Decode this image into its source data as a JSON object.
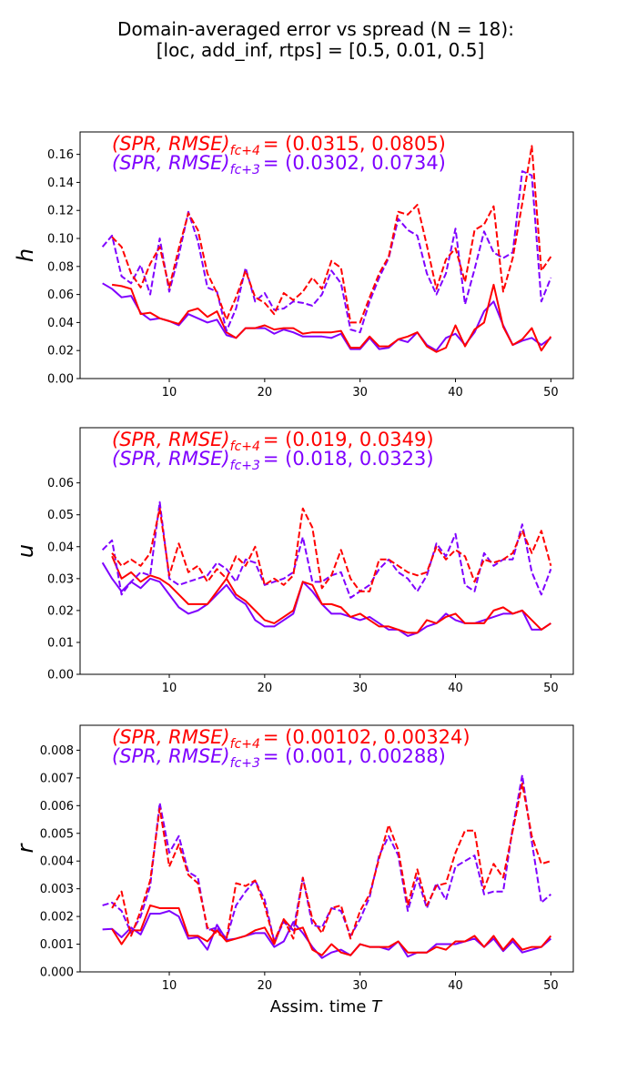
{
  "figure": {
    "title": [
      "Domain-averaged error vs spread  (N = 18):",
      "[loc, add_inf, rtps] = [0.5, 0.01, 0.5]"
    ],
    "xlabel": "Assim. time",
    "xlabel_var": "T"
  },
  "chart_data": [
    {
      "type": "line",
      "ylabel": "h",
      "x": [
        3,
        4,
        5,
        6,
        7,
        8,
        9,
        10,
        11,
        12,
        13,
        14,
        15,
        16,
        17,
        18,
        19,
        20,
        21,
        22,
        23,
        24,
        25,
        26,
        27,
        28,
        29,
        30,
        31,
        32,
        33,
        34,
        35,
        36,
        37,
        38,
        39,
        40,
        41,
        42,
        43,
        44,
        45,
        46,
        47,
        48,
        49,
        50
      ],
      "xlim": [
        0.65,
        52.35
      ],
      "xticks": [
        10,
        20,
        30,
        40,
        50
      ],
      "ylim": [
        0,
        0.176
      ],
      "yticks": [
        {
          "value": 0,
          "label": "0.00"
        },
        {
          "value": 0.02,
          "label": "0.02"
        },
        {
          "value": 0.04,
          "label": "0.04"
        },
        {
          "value": 0.06,
          "label": "0.06"
        },
        {
          "value": 0.08,
          "label": "0.08"
        },
        {
          "value": 0.1,
          "label": "0.10"
        },
        {
          "value": 0.12,
          "label": "0.12"
        },
        {
          "value": 0.14,
          "label": "0.14"
        },
        {
          "value": 0.16,
          "label": "0.16"
        }
      ],
      "annotations": [
        {
          "label": "(SPR, RMSE)",
          "subscript": "fc+4",
          "text": "= (0.0315, 0.0805)",
          "color": "#ff0000"
        },
        {
          "label": "(SPR, RMSE)",
          "subscript": "fc+3",
          "text": "= (0.0302, 0.0734)",
          "color": "#7f00ff"
        }
      ],
      "series": [
        {
          "color": "#7f00ff",
          "dashed": false,
          "values": [
            0.068,
            0.064,
            0.058,
            0.059,
            0.047,
            0.042,
            0.043,
            0.041,
            0.038,
            0.046,
            0.043,
            0.04,
            0.042,
            0.031,
            0.029,
            0.036,
            0.036,
            0.036,
            0.032,
            0.035,
            0.033,
            0.03,
            0.03,
            0.03,
            0.029,
            0.032,
            0.021,
            0.021,
            0.029,
            0.021,
            0.022,
            0.028,
            0.026,
            0.033,
            0.024,
            0.02,
            0.029,
            0.032,
            0.024,
            0.033,
            0.048,
            0.055,
            0.038,
            0.024,
            0.027,
            0.029,
            0.024,
            0.029
          ]
        },
        {
          "color": "#ff0000",
          "dashed": false,
          "values": [
            null,
            0.067,
            0.066,
            0.064,
            0.046,
            0.047,
            0.043,
            0.041,
            0.039,
            0.048,
            0.05,
            0.044,
            0.048,
            0.033,
            0.029,
            0.036,
            0.036,
            0.038,
            0.035,
            0.036,
            0.036,
            0.032,
            0.033,
            0.033,
            0.033,
            0.034,
            0.022,
            0.022,
            0.03,
            0.023,
            0.023,
            0.028,
            0.03,
            0.033,
            0.023,
            0.019,
            0.022,
            0.038,
            0.023,
            0.035,
            0.04,
            0.067,
            0.037,
            0.024,
            0.028,
            0.036,
            0.02,
            0.03
          ]
        },
        {
          "color": "#7f00ff",
          "dashed": true,
          "values": [
            0.094,
            0.102,
            0.073,
            0.068,
            0.081,
            0.06,
            0.1,
            0.062,
            0.088,
            0.119,
            0.098,
            0.065,
            0.062,
            0.034,
            0.05,
            0.079,
            0.055,
            0.061,
            0.049,
            0.05,
            0.055,
            0.054,
            0.052,
            0.06,
            0.077,
            0.068,
            0.035,
            0.033,
            0.055,
            0.072,
            0.086,
            0.114,
            0.106,
            0.102,
            0.075,
            0.06,
            0.075,
            0.107,
            0.053,
            0.078,
            0.105,
            0.09,
            0.086,
            0.09,
            0.148,
            0.145,
            0.055,
            0.072
          ]
        },
        {
          "color": "#ff0000",
          "dashed": true,
          "values": [
            null,
            0.101,
            0.094,
            0.075,
            0.065,
            0.082,
            0.094,
            0.065,
            0.093,
            0.118,
            0.106,
            0.075,
            0.061,
            0.042,
            0.058,
            0.077,
            0.058,
            0.054,
            0.046,
            0.061,
            0.056,
            0.062,
            0.072,
            0.064,
            0.084,
            0.079,
            0.04,
            0.04,
            0.058,
            0.075,
            0.087,
            0.119,
            0.117,
            0.124,
            0.095,
            0.064,
            0.085,
            0.093,
            0.069,
            0.106,
            0.11,
            0.123,
            0.062,
            0.086,
            0.125,
            0.166,
            0.077,
            0.087
          ]
        }
      ]
    },
    {
      "type": "line",
      "ylabel": "u",
      "x": [
        3,
        4,
        5,
        6,
        7,
        8,
        9,
        10,
        11,
        12,
        13,
        14,
        15,
        16,
        17,
        18,
        19,
        20,
        21,
        22,
        23,
        24,
        25,
        26,
        27,
        28,
        29,
        30,
        31,
        32,
        33,
        34,
        35,
        36,
        37,
        38,
        39,
        40,
        41,
        42,
        43,
        44,
        45,
        46,
        47,
        48,
        49,
        50
      ],
      "xlim": [
        0.65,
        52.35
      ],
      "xticks": [
        10,
        20,
        30,
        40,
        50
      ],
      "ylim": [
        0,
        0.0773
      ],
      "yticks": [
        {
          "value": 0,
          "label": "0.00"
        },
        {
          "value": 0.01,
          "label": "0.01"
        },
        {
          "value": 0.02,
          "label": "0.02"
        },
        {
          "value": 0.03,
          "label": "0.03"
        },
        {
          "value": 0.04,
          "label": "0.04"
        },
        {
          "value": 0.05,
          "label": "0.05"
        },
        {
          "value": 0.06,
          "label": "0.06"
        }
      ],
      "annotations": [
        {
          "label": "(SPR, RMSE)",
          "subscript": "fc+4",
          "text": "= (0.019, 0.0349)",
          "color": "#ff0000"
        },
        {
          "label": "(SPR, RMSE)",
          "subscript": "fc+3",
          "text": "= (0.018, 0.0323)",
          "color": "#7f00ff"
        }
      ],
      "series": [
        {
          "color": "#7f00ff",
          "dashed": false,
          "values": [
            0.035,
            0.03,
            0.026,
            0.029,
            0.027,
            0.03,
            0.029,
            0.025,
            0.021,
            0.019,
            0.02,
            0.022,
            0.025,
            0.028,
            0.024,
            0.022,
            0.017,
            0.015,
            0.015,
            0.017,
            0.019,
            0.029,
            0.026,
            0.022,
            0.019,
            0.019,
            0.018,
            0.017,
            0.018,
            0.016,
            0.014,
            0.014,
            0.012,
            0.013,
            0.015,
            0.016,
            0.019,
            0.017,
            0.016,
            0.016,
            0.017,
            0.018,
            0.019,
            0.019,
            0.02,
            0.014,
            0.014,
            0.016
          ]
        },
        {
          "color": "#ff0000",
          "dashed": false,
          "values": [
            null,
            0.037,
            0.03,
            0.032,
            0.029,
            0.031,
            0.03,
            0.028,
            0.025,
            0.022,
            0.022,
            0.022,
            0.026,
            0.03,
            0.025,
            0.023,
            0.02,
            0.017,
            0.016,
            0.018,
            0.02,
            0.029,
            0.028,
            0.022,
            0.022,
            0.021,
            0.018,
            0.019,
            0.017,
            0.015,
            0.015,
            0.014,
            0.013,
            0.013,
            0.017,
            0.016,
            0.018,
            0.019,
            0.016,
            0.016,
            0.016,
            0.02,
            0.021,
            0.019,
            0.02,
            0.017,
            0.014,
            0.016
          ]
        },
        {
          "color": "#7f00ff",
          "dashed": true,
          "values": [
            0.039,
            0.042,
            0.025,
            0.029,
            0.032,
            0.031,
            0.054,
            0.03,
            0.028,
            0.029,
            0.03,
            0.031,
            0.035,
            0.033,
            0.029,
            0.036,
            0.035,
            0.028,
            0.029,
            0.03,
            0.032,
            0.043,
            0.029,
            0.029,
            0.031,
            0.032,
            0.024,
            0.026,
            0.028,
            0.033,
            0.036,
            0.032,
            0.03,
            0.026,
            0.031,
            0.041,
            0.037,
            0.044,
            0.028,
            0.026,
            0.038,
            0.034,
            0.036,
            0.036,
            0.047,
            0.032,
            0.025,
            0.033
          ]
        },
        {
          "color": "#ff0000",
          "dashed": true,
          "values": [
            null,
            0.038,
            0.034,
            0.036,
            0.034,
            0.038,
            0.052,
            0.031,
            0.041,
            0.032,
            0.034,
            0.029,
            0.033,
            0.03,
            0.037,
            0.034,
            0.04,
            0.028,
            0.03,
            0.028,
            0.031,
            0.052,
            0.046,
            0.027,
            0.031,
            0.039,
            0.03,
            0.026,
            0.026,
            0.036,
            0.036,
            0.034,
            0.032,
            0.031,
            0.032,
            0.04,
            0.036,
            0.039,
            0.037,
            0.029,
            0.036,
            0.035,
            0.036,
            0.038,
            0.045,
            0.038,
            0.045,
            0.034
          ]
        }
      ]
    },
    {
      "type": "line",
      "ylabel": "r",
      "x": [
        3,
        4,
        5,
        6,
        7,
        8,
        9,
        10,
        11,
        12,
        13,
        14,
        15,
        16,
        17,
        18,
        19,
        20,
        21,
        22,
        23,
        24,
        25,
        26,
        27,
        28,
        29,
        30,
        31,
        32,
        33,
        34,
        35,
        36,
        37,
        38,
        39,
        40,
        41,
        42,
        43,
        44,
        45,
        46,
        47,
        48,
        49,
        50
      ],
      "xlim": [
        0.65,
        52.35
      ],
      "xticks": [
        10,
        20,
        30,
        40,
        50
      ],
      "ylim": [
        0,
        0.0089
      ],
      "yticks": [
        {
          "value": 0,
          "label": "0.000"
        },
        {
          "value": 0.001,
          "label": "0.001"
        },
        {
          "value": 0.002,
          "label": "0.002"
        },
        {
          "value": 0.003,
          "label": "0.003"
        },
        {
          "value": 0.004,
          "label": "0.004"
        },
        {
          "value": 0.005,
          "label": "0.005"
        },
        {
          "value": 0.006,
          "label": "0.006"
        },
        {
          "value": 0.007,
          "label": "0.007"
        },
        {
          "value": 0.008,
          "label": "0.008"
        }
      ],
      "annotations": [
        {
          "label": "(SPR, RMSE)",
          "subscript": "fc+4",
          "text": "= (0.00102, 0.00324)",
          "color": "#ff0000"
        },
        {
          "label": "(SPR, RMSE)",
          "subscript": "fc+3",
          "text": "= (0.001, 0.00288)",
          "color": "#7f00ff"
        }
      ],
      "series": [
        {
          "color": "#7f00ff",
          "dashed": false,
          "values": [
            0.00153,
            0.00155,
            0.00125,
            0.0016,
            0.00135,
            0.0021,
            0.0021,
            0.0022,
            0.002,
            0.0012,
            0.00125,
            0.0008,
            0.0017,
            0.00115,
            0.0012,
            0.0013,
            0.0014,
            0.0014,
            0.0009,
            0.0011,
            0.0018,
            0.0014,
            0.0009,
            0.0005,
            0.0007,
            0.0008,
            0.0006,
            0.001,
            0.0009,
            0.0009,
            0.0008,
            0.0011,
            0.00055,
            0.0007,
            0.0007,
            0.001,
            0.001,
            0.001,
            0.0011,
            0.0012,
            0.0009,
            0.0012,
            0.00075,
            0.0011,
            0.0007,
            0.0008,
            0.0009,
            0.0012
          ]
        },
        {
          "color": "#ff0000",
          "dashed": false,
          "values": [
            null,
            0.00155,
            0.001,
            0.0015,
            0.0015,
            0.0024,
            0.0023,
            0.0023,
            0.0023,
            0.0013,
            0.0013,
            0.0011,
            0.0015,
            0.0011,
            0.0012,
            0.0013,
            0.0015,
            0.0016,
            0.001,
            0.0019,
            0.0015,
            0.0016,
            0.0008,
            0.0006,
            0.001,
            0.0007,
            0.0006,
            0.001,
            0.0009,
            0.0009,
            0.0009,
            0.0011,
            0.0007,
            0.0007,
            0.0007,
            0.0009,
            0.0008,
            0.0011,
            0.0011,
            0.0013,
            0.0009,
            0.0013,
            0.0008,
            0.0012,
            0.0008,
            0.0009,
            0.0009,
            0.0013
          ]
        },
        {
          "color": "#7f00ff",
          "dashed": true,
          "values": [
            0.0024,
            0.0025,
            0.0022,
            0.0014,
            0.002,
            0.0031,
            0.0061,
            0.0043,
            0.0049,
            0.0036,
            0.0034,
            0.0015,
            0.0016,
            0.0012,
            0.0024,
            0.0029,
            0.0033,
            0.0026,
            0.0011,
            0.0018,
            0.0015,
            0.0034,
            0.0017,
            0.0016,
            0.0023,
            0.0022,
            0.0013,
            0.0019,
            0.0027,
            0.0042,
            0.0049,
            0.0042,
            0.0022,
            0.0034,
            0.0023,
            0.0032,
            0.0026,
            0.0038,
            0.004,
            0.0042,
            0.0028,
            0.0029,
            0.0029,
            0.0052,
            0.0071,
            0.0047,
            0.0025,
            0.0028
          ]
        },
        {
          "color": "#ff0000",
          "dashed": true,
          "values": [
            null,
            0.0023,
            0.0029,
            0.0013,
            0.0022,
            0.0033,
            0.0059,
            0.0038,
            0.0046,
            0.0035,
            0.0032,
            0.0016,
            0.0014,
            0.0012,
            0.0032,
            0.0031,
            0.0033,
            0.0024,
            0.0011,
            0.0019,
            0.0012,
            0.0034,
            0.0019,
            0.0014,
            0.0023,
            0.0024,
            0.0012,
            0.0022,
            0.0028,
            0.0041,
            0.0053,
            0.0044,
            0.0024,
            0.0037,
            0.0024,
            0.0031,
            0.0032,
            0.0043,
            0.0051,
            0.0051,
            0.003,
            0.0039,
            0.0034,
            0.0051,
            0.0068,
            0.0049,
            0.0039,
            0.004
          ]
        }
      ]
    }
  ]
}
